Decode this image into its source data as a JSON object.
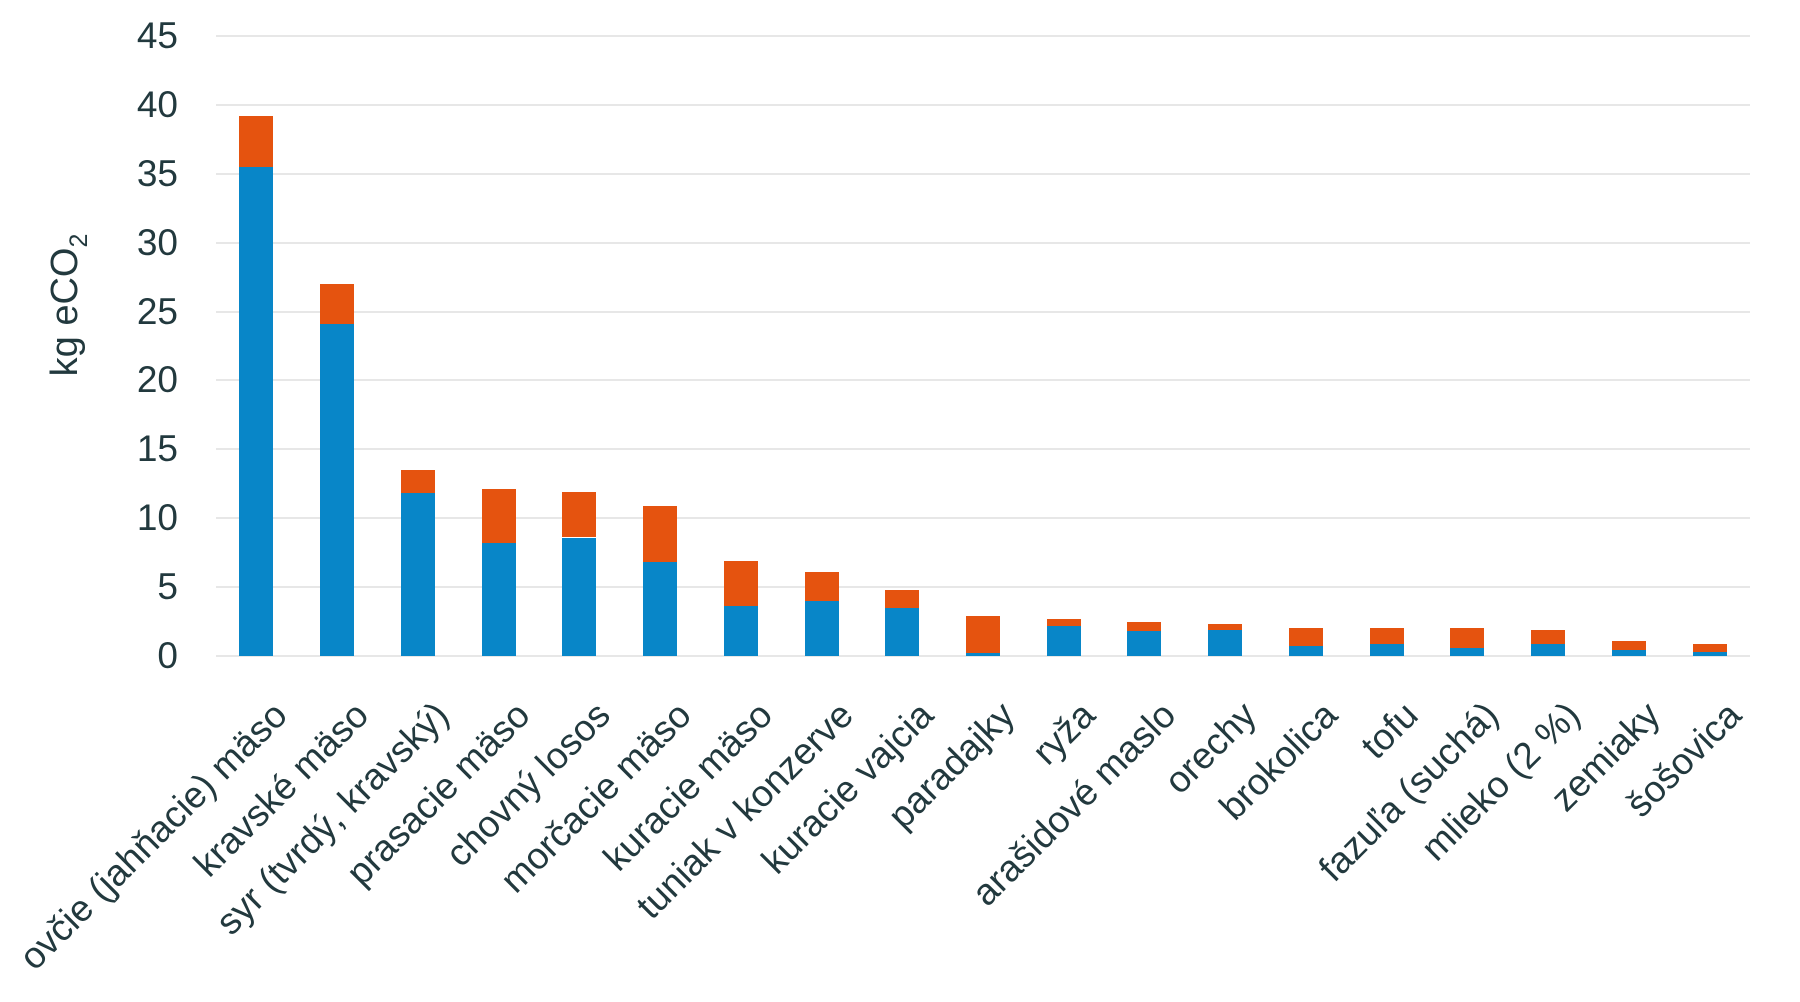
{
  "chart_data": {
    "type": "bar",
    "stacked": true,
    "title": "",
    "ylabel": {
      "text": "kg eCO",
      "subscript": "2"
    },
    "categories": [
      "ovčie (jahňacie) mäso",
      "kravské mäso",
      "syr (tvrdý, kravský)",
      "prasacie mäso",
      "chovný losos",
      "morčacie mäso",
      "kuracie mäso",
      "tuniak v konzerve",
      "kuracie vajcia",
      "paradajky",
      "ryža",
      "arašidové maslo",
      "orechy",
      "brokolica",
      "tofu",
      "fazuľa (suchá)",
      "mlieko (2 %)",
      "zemiaky",
      "šošovica"
    ],
    "series": [
      {
        "name": "blue",
        "color": "#0886C8",
        "values": [
          35.5,
          24.1,
          11.8,
          8.2,
          8.6,
          6.8,
          3.6,
          4.0,
          3.5,
          0.2,
          2.2,
          1.8,
          1.9,
          0.7,
          0.9,
          0.6,
          0.9,
          0.4,
          0.3
        ]
      },
      {
        "name": "orange",
        "color": "#E5530F",
        "values": [
          3.7,
          2.9,
          1.7,
          3.9,
          3.3,
          4.1,
          3.3,
          2.1,
          1.3,
          2.7,
          0.5,
          0.7,
          0.4,
          1.3,
          1.1,
          1.4,
          1.0,
          0.7,
          0.6
        ]
      }
    ],
    "totals": [
      39.2,
      27.0,
      13.5,
      12.1,
      11.9,
      10.9,
      6.9,
      6.1,
      4.8,
      2.9,
      2.7,
      2.5,
      2.3,
      2.0,
      2.0,
      2.0,
      1.9,
      1.1,
      0.9
    ],
    "ylim": [
      0,
      45
    ],
    "yticks": [
      0,
      5,
      10,
      15,
      20,
      25,
      30,
      35,
      40,
      45
    ],
    "grid": true,
    "legend": "none"
  },
  "colors": {
    "background": "#FFFFFF",
    "text": "#22393E",
    "gridline": "#E7E7E7",
    "bar_blue": "#0886C8",
    "bar_orange": "#E5530F"
  }
}
